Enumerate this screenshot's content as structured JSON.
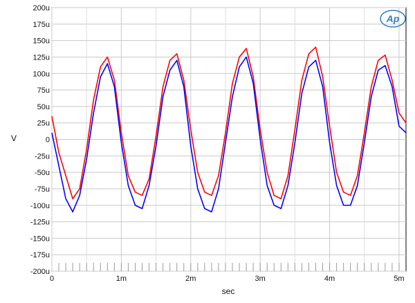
{
  "chart_data": {
    "type": "line",
    "title": "",
    "xlabel": "sec",
    "ylabel": "V",
    "xlim": [
      0,
      0.0051
    ],
    "ylim": [
      -200,
      200
    ],
    "grid": true,
    "x_ticks": [
      {
        "value": 0,
        "label": "0"
      },
      {
        "value": 0.001,
        "label": "1m"
      },
      {
        "value": 0.002,
        "label": "2m"
      },
      {
        "value": 0.003,
        "label": "3m"
      },
      {
        "value": 0.004,
        "label": "4m"
      },
      {
        "value": 0.005,
        "label": "5m"
      }
    ],
    "y_ticks": [
      {
        "value": 200,
        "label": "200u"
      },
      {
        "value": 175,
        "label": "175u"
      },
      {
        "value": 150,
        "label": "150u"
      },
      {
        "value": 125,
        "label": "125u"
      },
      {
        "value": 100,
        "label": "100u"
      },
      {
        "value": 75,
        "label": "75u"
      },
      {
        "value": 50,
        "label": "50u"
      },
      {
        "value": 25,
        "label": "25u"
      },
      {
        "value": 0,
        "label": "0"
      },
      {
        "value": -25,
        "label": "-25u"
      },
      {
        "value": -50,
        "label": "-50u"
      },
      {
        "value": -75,
        "label": "-75u"
      },
      {
        "value": -100,
        "label": "-100u"
      },
      {
        "value": -125,
        "label": "-125u"
      },
      {
        "value": -150,
        "label": "-150u"
      },
      {
        "value": -175,
        "label": "-175u"
      },
      {
        "value": -200,
        "label": "-200u"
      }
    ],
    "series": [
      {
        "color": "#ff0000",
        "x": [
          0.0,
          0.0001,
          0.0002,
          0.0003,
          0.0004,
          0.0005,
          0.0006,
          0.0007,
          0.0008,
          0.0009,
          0.001,
          0.0011,
          0.0012,
          0.0013,
          0.0014,
          0.0015,
          0.0016,
          0.0017,
          0.0018,
          0.0019,
          0.002,
          0.0021,
          0.0022,
          0.0023,
          0.0024,
          0.0025,
          0.0026,
          0.0027,
          0.0028,
          0.0029,
          0.003,
          0.0031,
          0.0032,
          0.0033,
          0.0034,
          0.0035,
          0.0036,
          0.0037,
          0.0038,
          0.0039,
          0.004,
          0.0041,
          0.0042,
          0.0043,
          0.0044,
          0.0045,
          0.0046,
          0.0047,
          0.0048,
          0.0049,
          0.005,
          0.0051
        ],
        "values": [
          35,
          -20,
          -55,
          -90,
          -75,
          -15,
          60,
          110,
          125,
          90,
          10,
          -55,
          -80,
          -85,
          -60,
          5,
          80,
          120,
          130,
          90,
          15,
          -50,
          -80,
          -85,
          -55,
          10,
          85,
          125,
          138,
          95,
          15,
          -50,
          -85,
          -90,
          -55,
          15,
          90,
          130,
          140,
          95,
          20,
          -50,
          -80,
          -85,
          -55,
          10,
          80,
          120,
          128,
          90,
          40,
          25
        ]
      },
      {
        "color": "#0000ff",
        "x": [
          0.0,
          0.0001,
          0.0002,
          0.0003,
          0.0004,
          0.0005,
          0.0006,
          0.0007,
          0.0008,
          0.0009,
          0.001,
          0.0011,
          0.0012,
          0.0013,
          0.0014,
          0.0015,
          0.0016,
          0.0017,
          0.0018,
          0.0019,
          0.002,
          0.0021,
          0.0022,
          0.0023,
          0.0024,
          0.0025,
          0.0026,
          0.0027,
          0.0028,
          0.0029,
          0.003,
          0.0031,
          0.0032,
          0.0033,
          0.0034,
          0.0035,
          0.0036,
          0.0037,
          0.0038,
          0.0039,
          0.004,
          0.0041,
          0.0042,
          0.0043,
          0.0044,
          0.0045,
          0.0046,
          0.0047,
          0.0048,
          0.0049,
          0.005,
          0.0051
        ],
        "values": [
          10,
          -40,
          -90,
          -110,
          -85,
          -30,
          40,
          95,
          115,
          80,
          -5,
          -70,
          -100,
          -105,
          -70,
          -10,
          65,
          105,
          120,
          80,
          -10,
          -75,
          -105,
          -110,
          -75,
          -5,
          65,
          110,
          125,
          85,
          0,
          -70,
          -100,
          -105,
          -70,
          -5,
          70,
          110,
          120,
          80,
          -5,
          -70,
          -100,
          -100,
          -70,
          -5,
          65,
          105,
          112,
          80,
          20,
          10
        ]
      }
    ]
  }
}
